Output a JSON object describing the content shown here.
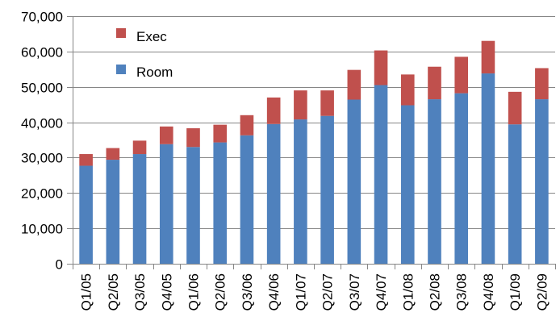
{
  "chart_data": {
    "type": "bar",
    "stacked": true,
    "categories": [
      "Q1/05",
      "Q2/05",
      "Q3/05",
      "Q4/05",
      "Q1/06",
      "Q2/06",
      "Q3/06",
      "Q4/06",
      "Q1/07",
      "Q2/07",
      "Q3/07",
      "Q4/07",
      "Q1/08",
      "Q2/08",
      "Q3/08",
      "Q4/08",
      "Q1/09",
      "Q2/09"
    ],
    "series": [
      {
        "name": "Room",
        "color": "#4f81bd",
        "values": [
          27700,
          29400,
          31000,
          33800,
          33000,
          34300,
          36300,
          39500,
          40800,
          41800,
          46400,
          50500,
          44800,
          46500,
          48200,
          53800,
          39400,
          46500
        ]
      },
      {
        "name": "Exec",
        "color": "#c0504d",
        "values": [
          3300,
          3300,
          3800,
          5000,
          5300,
          5000,
          5700,
          7500,
          8200,
          7200,
          8400,
          9800,
          8700,
          9200,
          10300,
          9200,
          9200,
          8800
        ]
      }
    ],
    "legend": [
      {
        "label": "Exec",
        "color": "#c0504d"
      },
      {
        "label": "Room",
        "color": "#4f81bd"
      }
    ],
    "legend_position": "top-left",
    "ylim": [
      0,
      70000
    ],
    "yticks": [
      "0",
      "10,000",
      "20,000",
      "30,000",
      "40,000",
      "50,000",
      "60,000",
      "70,000"
    ],
    "grid": true,
    "title": "",
    "xlabel": "",
    "ylabel": ""
  }
}
